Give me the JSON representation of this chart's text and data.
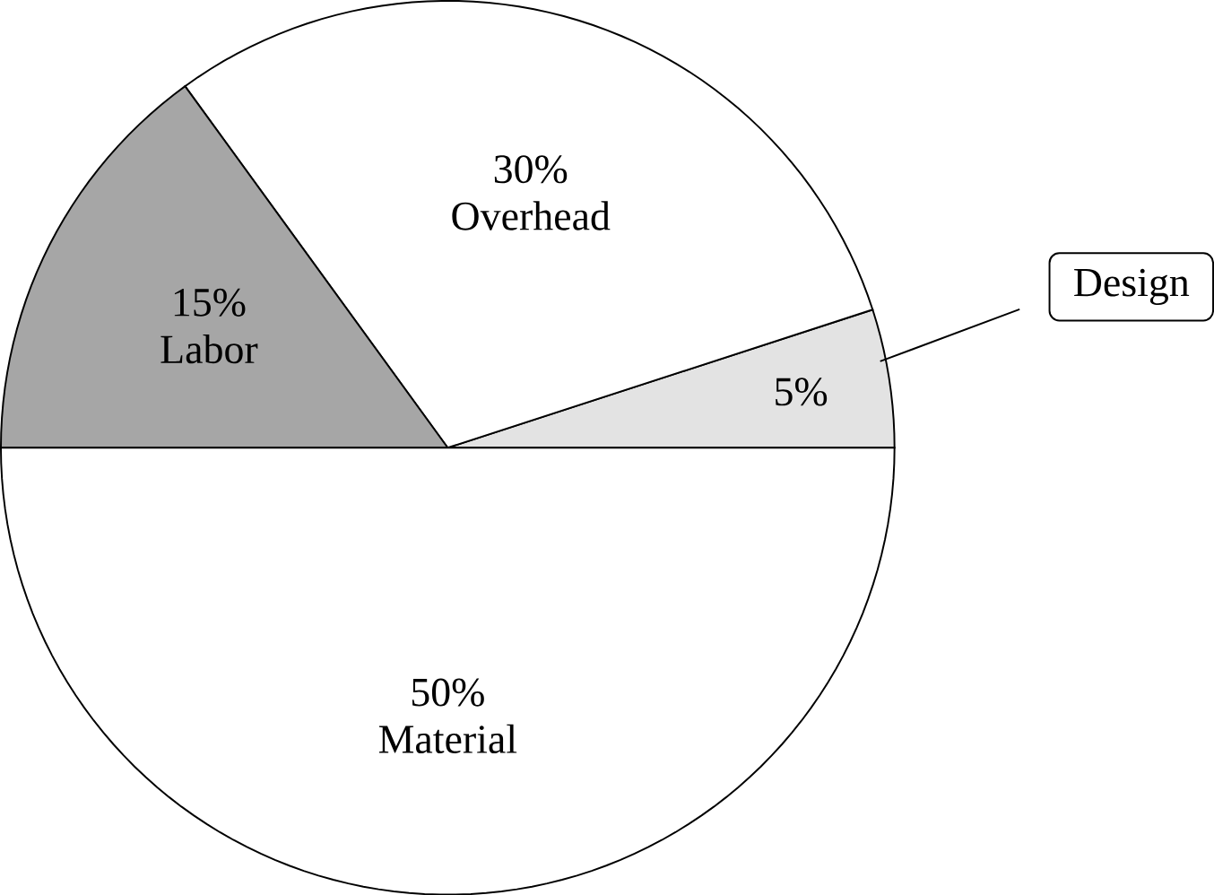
{
  "chart_data": {
    "type": "pie",
    "categories": [
      "Design",
      "Overhead",
      "Labor",
      "Material"
    ],
    "values": [
      5,
      30,
      15,
      50
    ],
    "value_labels": [
      "5%",
      "30%",
      "15%",
      "50%"
    ],
    "colors": [
      "#e3e3e3",
      "#ffffff",
      "#a6a6a6",
      "#ffffff"
    ]
  }
}
